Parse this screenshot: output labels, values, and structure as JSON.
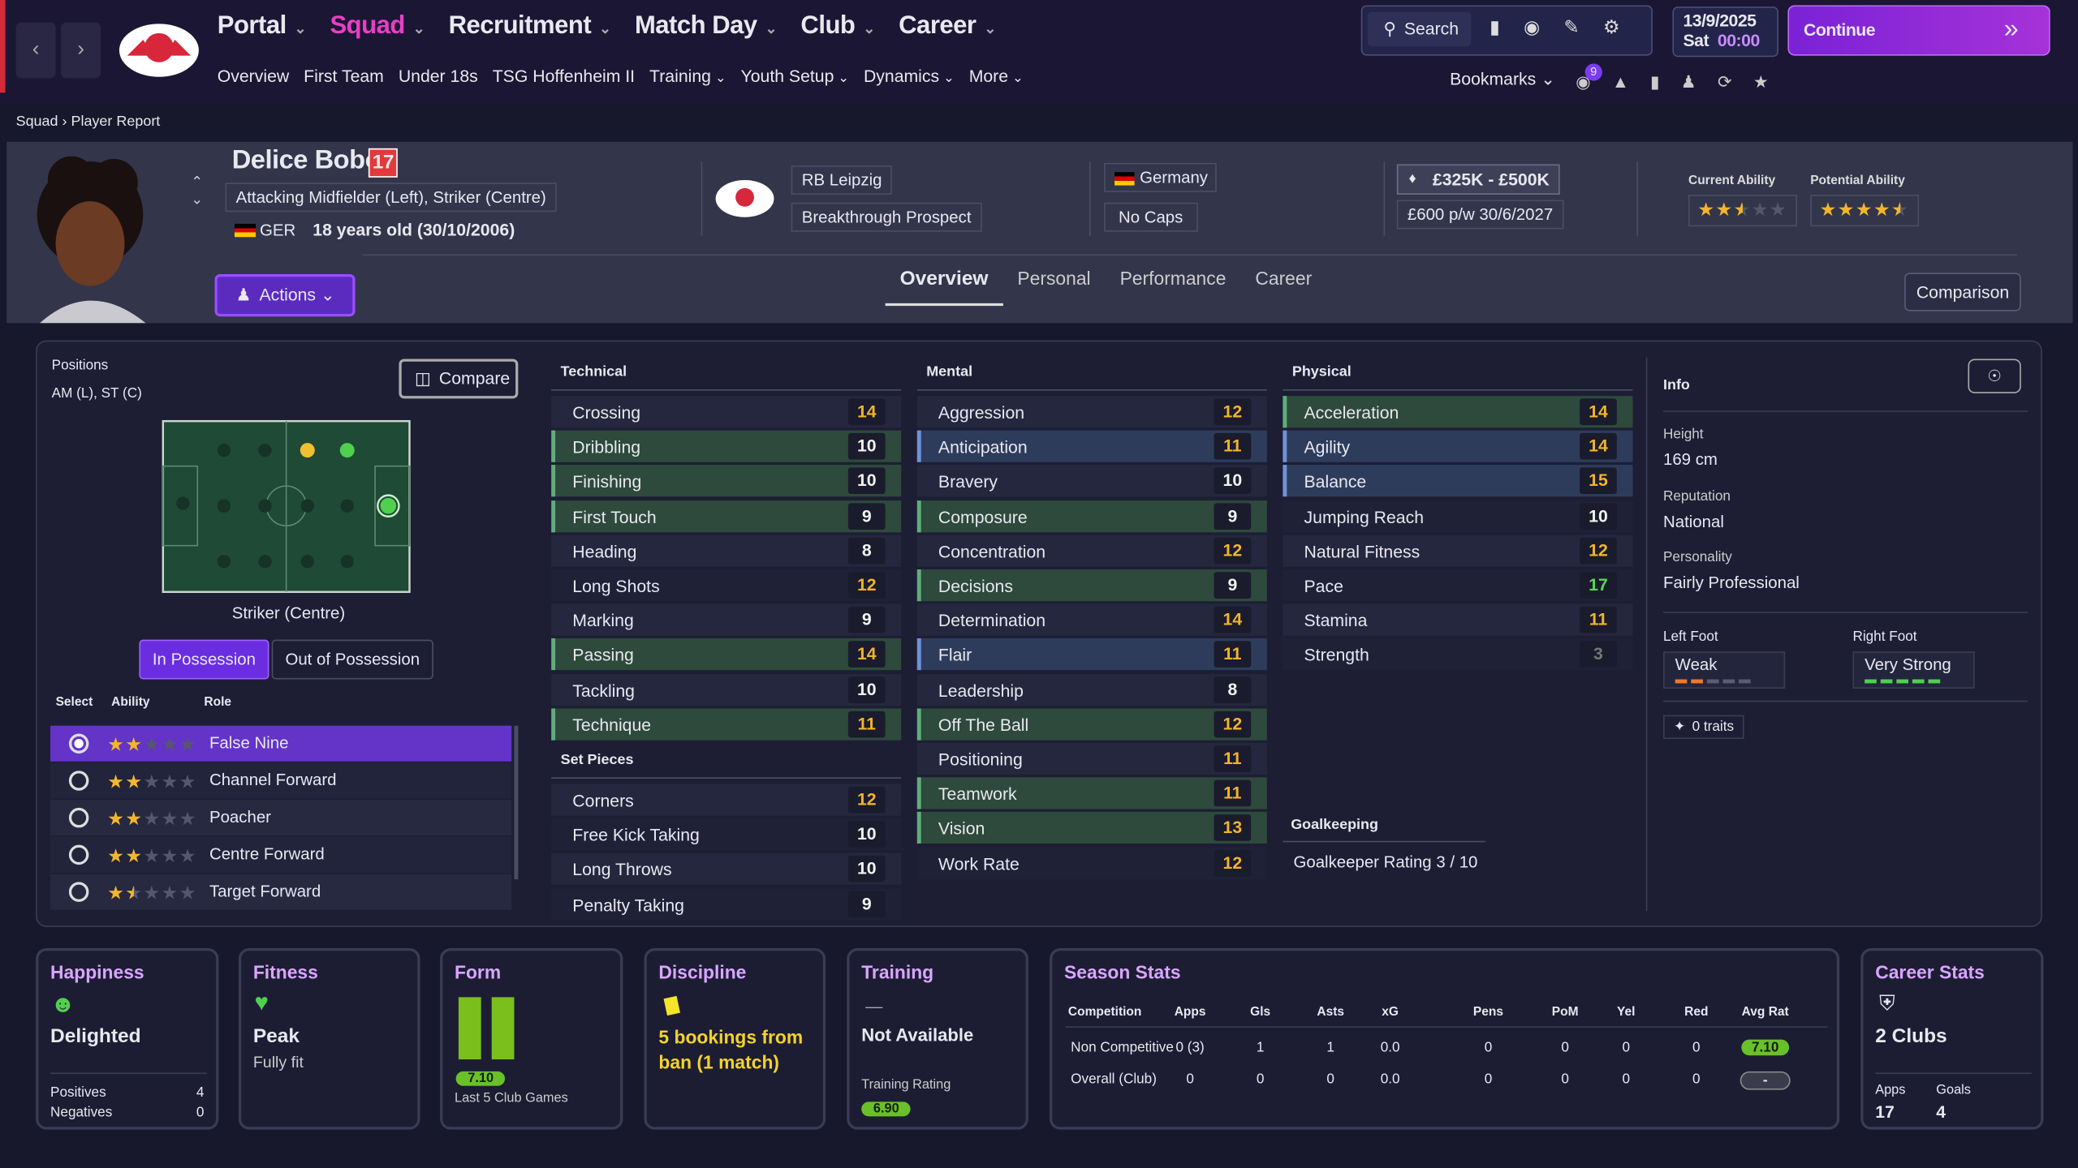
{
  "nav": {
    "menus": [
      "Portal",
      "Squad",
      "Recruitment",
      "Match Day",
      "Club",
      "Career"
    ],
    "submenu": [
      "Overview",
      "First Team",
      "Under 18s",
      "TSG Hoffenheim II",
      "Training",
      "Youth Setup",
      "Dynamics",
      "More"
    ],
    "search": "Search",
    "date": "13/9/2025",
    "day": "Sat",
    "time": "00:00",
    "continue": "Continue",
    "bookmarks": "Bookmarks",
    "notifications": "9"
  },
  "breadcrumb": [
    "Squad",
    "Player Report"
  ],
  "player": {
    "name": "Delice Boboy",
    "number": "17",
    "positions": "Attacking Midfielder (Left), Striker (Centre)",
    "nation_code": "GER",
    "age": "18 years old (30/10/2006)",
    "club": "RB Leipzig",
    "status": "Breakthrough Prospect",
    "country": "Germany",
    "caps": "No Caps",
    "value": "£325K - £500K",
    "wage": "£600 p/w 30/6/2027",
    "current_ability_label": "Current Ability",
    "current_ability": 2.5,
    "potential_ability_label": "Potential Ability",
    "potential_ability": 4.5,
    "actions": "Actions",
    "tabs": [
      "Overview",
      "Personal",
      "Performance",
      "Career"
    ],
    "comparison": "Comparison"
  },
  "positions": {
    "title": "Positions",
    "summary": "AM (L), ST (C)",
    "compare": "Compare",
    "selected": "Striker (Centre)",
    "modes": [
      "In Possession",
      "Out of Possession"
    ],
    "headers": [
      "Select",
      "Ability",
      "Role"
    ],
    "roles": [
      {
        "name": "False Nine",
        "ability": 2
      },
      {
        "name": "Channel Forward",
        "ability": 2
      },
      {
        "name": "Poacher",
        "ability": 2
      },
      {
        "name": "Centre Forward",
        "ability": 2
      },
      {
        "name": "Target Forward",
        "ability": 1.5
      }
    ]
  },
  "attributes": [
    {
      "title": "Technical",
      "items": [
        {
          "name": "Crossing",
          "value": 14
        },
        {
          "name": "Dribbling",
          "value": 10,
          "highlight": "green"
        },
        {
          "name": "Finishing",
          "value": 10,
          "highlight": "green"
        },
        {
          "name": "First Touch",
          "value": 9,
          "highlight": "green"
        },
        {
          "name": "Heading",
          "value": 8
        },
        {
          "name": "Long Shots",
          "value": 12
        },
        {
          "name": "Marking",
          "value": 9
        },
        {
          "name": "Passing",
          "value": 14,
          "highlight": "green"
        },
        {
          "name": "Tackling",
          "value": 10
        },
        {
          "name": "Technique",
          "value": 11,
          "highlight": "green"
        }
      ]
    },
    {
      "title": "Set Pieces",
      "items": [
        {
          "name": "Corners",
          "value": 12
        },
        {
          "name": "Free Kick Taking",
          "value": 10
        },
        {
          "name": "Long Throws",
          "value": 10
        },
        {
          "name": "Penalty Taking",
          "value": 9
        }
      ]
    },
    {
      "title": "Mental",
      "items": [
        {
          "name": "Aggression",
          "value": 12
        },
        {
          "name": "Anticipation",
          "value": 11,
          "highlight": "blue"
        },
        {
          "name": "Bravery",
          "value": 10
        },
        {
          "name": "Composure",
          "value": 9,
          "highlight": "green"
        },
        {
          "name": "Concentration",
          "value": 12
        },
        {
          "name": "Decisions",
          "value": 9,
          "highlight": "green"
        },
        {
          "name": "Determination",
          "value": 14
        },
        {
          "name": "Flair",
          "value": 11,
          "highlight": "blue"
        },
        {
          "name": "Leadership",
          "value": 8
        },
        {
          "name": "Off The Ball",
          "value": 12,
          "highlight": "green"
        },
        {
          "name": "Positioning",
          "value": 11
        },
        {
          "name": "Teamwork",
          "value": 11,
          "highlight": "green"
        },
        {
          "name": "Vision",
          "value": 13,
          "highlight": "green"
        },
        {
          "name": "Work Rate",
          "value": 12
        }
      ]
    },
    {
      "title": "Physical",
      "items": [
        {
          "name": "Acceleration",
          "value": 14,
          "highlight": "green"
        },
        {
          "name": "Agility",
          "value": 14,
          "highlight": "blue"
        },
        {
          "name": "Balance",
          "value": 15,
          "highlight": "blue"
        },
        {
          "name": "Jumping Reach",
          "value": 10
        },
        {
          "name": "Natural Fitness",
          "value": 12
        },
        {
          "name": "Pace",
          "value": 17
        },
        {
          "name": "Stamina",
          "value": 11
        },
        {
          "name": "Strength",
          "value": 3
        }
      ]
    }
  ],
  "goalkeeping": {
    "title": "Goalkeeping",
    "label": "Goalkeeper Rating",
    "value": "3 / 10"
  },
  "info": {
    "title": "Info",
    "fields": [
      {
        "label": "Height",
        "value": "169 cm"
      },
      {
        "label": "Reputation",
        "value": "National"
      },
      {
        "label": "Personality",
        "value": "Fairly Professional"
      }
    ],
    "feet": [
      {
        "label": "Left Foot",
        "value": "Weak",
        "level": 2
      },
      {
        "label": "Right Foot",
        "value": "Very Strong",
        "level": 5
      }
    ],
    "traits": "0 traits"
  },
  "cards": {
    "happiness": {
      "title": "Happiness",
      "status": "Delighted",
      "rows": [
        [
          "Positives",
          "4"
        ],
        [
          "Negatives",
          "0"
        ]
      ]
    },
    "fitness": {
      "title": "Fitness",
      "status": "Peak",
      "detail": "Fully fit"
    },
    "form": {
      "title": "Form",
      "rating": "7.10",
      "detail": "Last 5 Club Games"
    },
    "discipline": {
      "title": "Discipline",
      "status": "5 bookings from ban (1 match)"
    },
    "training": {
      "title": "Training",
      "icon": "—",
      "status": "Not Available",
      "label": "Training Rating",
      "rating": "6.90"
    },
    "season": {
      "title": "Season Stats",
      "headers": [
        "Competition",
        "Apps",
        "Gls",
        "Asts",
        "xG",
        "Pens",
        "PoM",
        "Yel",
        "Red",
        "Avg Rat"
      ],
      "rows": [
        [
          "Non Competitive",
          "0 (3)",
          "1",
          "1",
          "0.0",
          "0",
          "0",
          "0",
          "0",
          "7.10"
        ],
        [
          "Overall (Club)",
          "0",
          "0",
          "0",
          "0.0",
          "0",
          "0",
          "0",
          "0",
          "-"
        ]
      ]
    },
    "career": {
      "title": "Career Stats",
      "status": "2 Clubs",
      "labels": [
        "Apps",
        "Goals"
      ],
      "values": [
        "17",
        "4"
      ]
    }
  }
}
